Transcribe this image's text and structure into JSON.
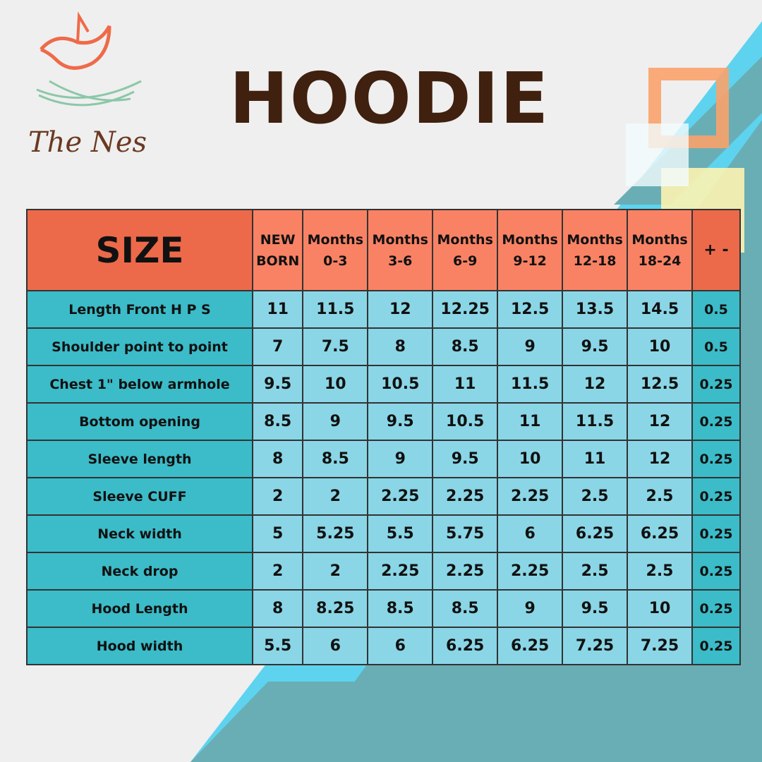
{
  "brand": {
    "name": "The Nest",
    "colors": {
      "bird": "#ef6a48",
      "nest": "#8cc7a8",
      "text": "#6a3a22"
    }
  },
  "title": "HOODIE",
  "table": {
    "size_label": "SIZE",
    "columns": [
      [
        "NEW",
        "BORN"
      ],
      [
        "Months",
        "0-3"
      ],
      [
        "Months",
        "3-6"
      ],
      [
        "Months",
        "6-9"
      ],
      [
        "Months",
        "9-12"
      ],
      [
        "Months",
        "12-18"
      ],
      [
        "Months",
        "18-24"
      ]
    ],
    "tolerance_label": "+ -",
    "rows": [
      {
        "label": "Length Front H P S",
        "values": [
          "11",
          "11.5",
          "12",
          "12.25",
          "12.5",
          "13.5",
          "14.5"
        ],
        "tol": "0.5"
      },
      {
        "label": "Shoulder point to point",
        "values": [
          "7",
          "7.5",
          "8",
          "8.5",
          "9",
          "9.5",
          "10"
        ],
        "tol": "0.5"
      },
      {
        "label": "Chest 1\" below armhole",
        "values": [
          "9.5",
          "10",
          "10.5",
          "11",
          "11.5",
          "12",
          "12.5"
        ],
        "tol": "0.25"
      },
      {
        "label": "Bottom opening",
        "values": [
          "8.5",
          "9",
          "9.5",
          "10.5",
          "11",
          "11.5",
          "12"
        ],
        "tol": "0.25"
      },
      {
        "label": "Sleeve length",
        "values": [
          "8",
          "8.5",
          "9",
          "9.5",
          "10",
          "11",
          "12"
        ],
        "tol": "0.25"
      },
      {
        "label": "Sleeve CUFF",
        "values": [
          "2",
          "2",
          "2.25",
          "2.25",
          "2.25",
          "2.5",
          "2.5"
        ],
        "tol": "0.25"
      },
      {
        "label": "Neck width",
        "values": [
          "5",
          "5.25",
          "5.5",
          "5.75",
          "6",
          "6.25",
          "6.25"
        ],
        "tol": "0.25"
      },
      {
        "label": "Neck drop",
        "values": [
          "2",
          "2",
          "2.25",
          "2.25",
          "2.25",
          "2.5",
          "2.5"
        ],
        "tol": "0.25"
      },
      {
        "label": "Hood Length",
        "values": [
          "8",
          "8.25",
          "8.5",
          "8.5",
          "9",
          "9.5",
          "10"
        ],
        "tol": "0.25"
      },
      {
        "label": "Hood width",
        "values": [
          "5.5",
          "6",
          "6",
          "6.25",
          "6.25",
          "7.25",
          "7.25"
        ],
        "tol": "0.25"
      }
    ]
  }
}
